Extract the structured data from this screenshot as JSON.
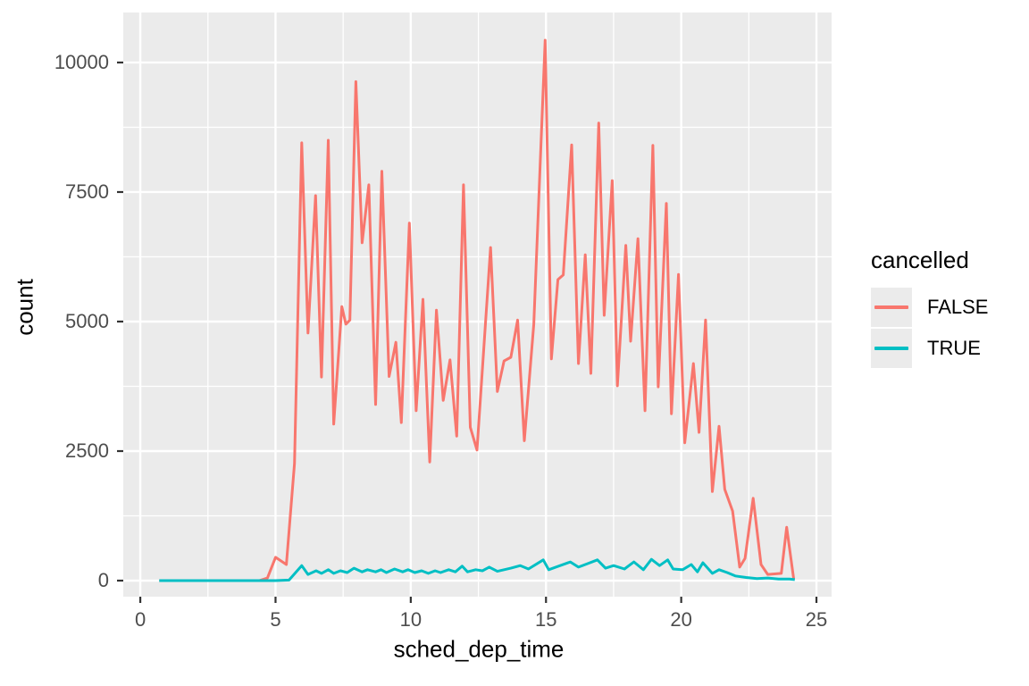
{
  "chart_data": {
    "type": "line",
    "title": "",
    "xlabel": "sched_dep_time",
    "ylabel": "count",
    "x_ticks": [
      0,
      5,
      10,
      15,
      20,
      25
    ],
    "y_ticks": [
      0,
      2500,
      5000,
      7500,
      10000
    ],
    "x_minor": [
      2.5,
      7.5,
      12.5,
      17.5,
      22.5
    ],
    "y_minor": [
      1250,
      3750,
      6250,
      8750
    ],
    "xlim": [
      -0.63,
      25.56
    ],
    "ylim": [
      -310,
      10965
    ],
    "grid": "on",
    "legend": {
      "title": "cancelled",
      "position": "right",
      "entries": [
        {
          "label": "FALSE",
          "color": "#F8766D"
        },
        {
          "label": "TRUE",
          "color": "#00BFC4"
        }
      ]
    },
    "series": [
      {
        "name": "FALSE",
        "color": "#F8766D",
        "points": [
          [
            0.7,
            0
          ],
          [
            1.5,
            0
          ],
          [
            2.5,
            0
          ],
          [
            3.5,
            0
          ],
          [
            4.4,
            0
          ],
          [
            4.7,
            50
          ],
          [
            5.0,
            450
          ],
          [
            5.4,
            310
          ],
          [
            5.7,
            2260
          ],
          [
            5.97,
            8450
          ],
          [
            6.2,
            4780
          ],
          [
            6.48,
            7430
          ],
          [
            6.7,
            3930
          ],
          [
            6.95,
            8500
          ],
          [
            7.15,
            3020
          ],
          [
            7.45,
            5290
          ],
          [
            7.6,
            4950
          ],
          [
            7.75,
            5030
          ],
          [
            7.97,
            9630
          ],
          [
            8.2,
            6520
          ],
          [
            8.45,
            7640
          ],
          [
            8.7,
            3400
          ],
          [
            8.93,
            7900
          ],
          [
            9.2,
            3940
          ],
          [
            9.45,
            4600
          ],
          [
            9.65,
            3050
          ],
          [
            9.95,
            6900
          ],
          [
            10.2,
            3280
          ],
          [
            10.45,
            5430
          ],
          [
            10.7,
            2290
          ],
          [
            10.95,
            5220
          ],
          [
            11.2,
            3480
          ],
          [
            11.45,
            4260
          ],
          [
            11.7,
            2790
          ],
          [
            11.95,
            7640
          ],
          [
            12.2,
            2960
          ],
          [
            12.45,
            2520
          ],
          [
            12.95,
            6430
          ],
          [
            13.2,
            3650
          ],
          [
            13.45,
            4240
          ],
          [
            13.7,
            4310
          ],
          [
            13.95,
            5030
          ],
          [
            14.2,
            2700
          ],
          [
            14.55,
            4950
          ],
          [
            14.97,
            10430
          ],
          [
            15.2,
            4280
          ],
          [
            15.44,
            5810
          ],
          [
            15.64,
            5900
          ],
          [
            15.95,
            8410
          ],
          [
            16.2,
            4190
          ],
          [
            16.45,
            6290
          ],
          [
            16.66,
            4000
          ],
          [
            16.95,
            8830
          ],
          [
            17.15,
            5120
          ],
          [
            17.45,
            7720
          ],
          [
            17.64,
            3760
          ],
          [
            17.95,
            6470
          ],
          [
            18.13,
            4620
          ],
          [
            18.4,
            6600
          ],
          [
            18.66,
            3280
          ],
          [
            18.95,
            8400
          ],
          [
            19.15,
            3740
          ],
          [
            19.45,
            7280
          ],
          [
            19.64,
            3220
          ],
          [
            19.9,
            5910
          ],
          [
            20.13,
            2660
          ],
          [
            20.45,
            4190
          ],
          [
            20.66,
            2860
          ],
          [
            20.9,
            5030
          ],
          [
            21.15,
            1720
          ],
          [
            21.4,
            2980
          ],
          [
            21.61,
            1760
          ],
          [
            21.9,
            1340
          ],
          [
            22.16,
            260
          ],
          [
            22.36,
            430
          ],
          [
            22.66,
            1590
          ],
          [
            22.95,
            310
          ],
          [
            23.2,
            120
          ],
          [
            23.7,
            140
          ],
          [
            23.9,
            1030
          ],
          [
            24.16,
            30
          ]
        ]
      },
      {
        "name": "TRUE",
        "color": "#00BFC4",
        "points": [
          [
            0.7,
            0
          ],
          [
            2.0,
            0
          ],
          [
            3.0,
            0
          ],
          [
            4.0,
            0
          ],
          [
            5.0,
            0
          ],
          [
            5.5,
            10
          ],
          [
            5.97,
            290
          ],
          [
            6.2,
            120
          ],
          [
            6.5,
            190
          ],
          [
            6.7,
            140
          ],
          [
            6.95,
            210
          ],
          [
            7.15,
            140
          ],
          [
            7.4,
            190
          ],
          [
            7.65,
            155
          ],
          [
            7.9,
            240
          ],
          [
            8.2,
            170
          ],
          [
            8.4,
            210
          ],
          [
            8.7,
            170
          ],
          [
            8.9,
            210
          ],
          [
            9.1,
            155
          ],
          [
            9.4,
            225
          ],
          [
            9.7,
            170
          ],
          [
            9.9,
            210
          ],
          [
            10.15,
            155
          ],
          [
            10.4,
            190
          ],
          [
            10.65,
            140
          ],
          [
            10.9,
            190
          ],
          [
            11.1,
            155
          ],
          [
            11.4,
            210
          ],
          [
            11.65,
            170
          ],
          [
            11.9,
            280
          ],
          [
            12.1,
            170
          ],
          [
            12.4,
            210
          ],
          [
            12.65,
            190
          ],
          [
            12.9,
            260
          ],
          [
            13.2,
            180
          ],
          [
            13.7,
            240
          ],
          [
            14.05,
            290
          ],
          [
            14.35,
            225
          ],
          [
            14.9,
            400
          ],
          [
            15.1,
            210
          ],
          [
            15.9,
            360
          ],
          [
            16.2,
            260
          ],
          [
            16.55,
            330
          ],
          [
            16.9,
            400
          ],
          [
            17.2,
            240
          ],
          [
            17.5,
            290
          ],
          [
            17.9,
            225
          ],
          [
            18.25,
            360
          ],
          [
            18.6,
            210
          ],
          [
            18.9,
            410
          ],
          [
            19.2,
            290
          ],
          [
            19.5,
            400
          ],
          [
            19.7,
            225
          ],
          [
            20.05,
            210
          ],
          [
            20.37,
            310
          ],
          [
            20.6,
            170
          ],
          [
            20.8,
            345
          ],
          [
            21.15,
            140
          ],
          [
            21.4,
            210
          ],
          [
            21.7,
            155
          ],
          [
            22.0,
            90
          ],
          [
            22.4,
            60
          ],
          [
            22.8,
            40
          ],
          [
            23.2,
            50
          ],
          [
            23.6,
            30
          ],
          [
            24.0,
            30
          ],
          [
            24.2,
            20
          ]
        ]
      }
    ]
  },
  "colors": {
    "panel_bg": "#EBEBEB",
    "grid": "#FFFFFF",
    "tick_label": "#4D4D4D",
    "axis_title": "#000000",
    "tick_mark": "#333333",
    "legend_key_bg": "#EBEBEB"
  }
}
